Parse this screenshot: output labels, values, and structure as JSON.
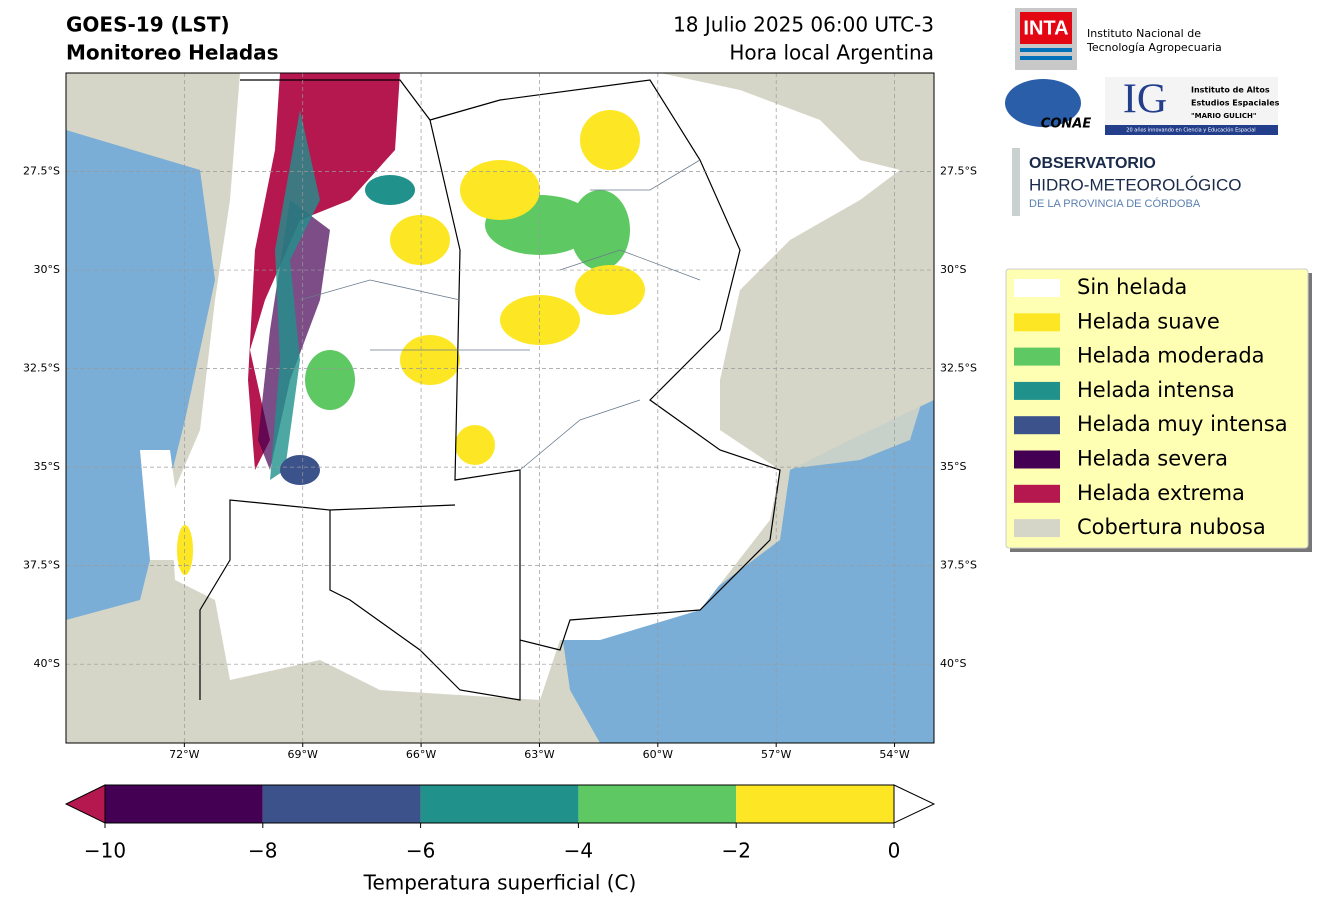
{
  "header": {
    "title": "GOES-19 (LST)",
    "subtitle": "Monitoreo Heladas",
    "date": "18 Julio 2025 06:00 UTC-3",
    "local_time": "Hora local Argentina"
  },
  "logos": {
    "inta": "INTA",
    "inta_name_1": "Instituto Nacional de",
    "inta_name_2": "Tecnología Agropecuaria",
    "conae": "CONAE",
    "ig": "IG",
    "ig_name_1": "Instituto de Altos",
    "ig_name_2": "Estudios Espaciales",
    "ig_name_3": "\"MARIO GULICH\"",
    "ig_motto": "20 años innovando en Ciencia y Educación Espacial",
    "obs_1": "OBSERVATORIO",
    "obs_2": "HIDRO-METEOROLÓGICO",
    "obs_3": "DE LA PROVINCIA DE CÓRDOBA"
  },
  "map": {
    "lonlim": [
      -75,
      -53
    ],
    "latlim": [
      -42,
      -25
    ],
    "grid": true,
    "lon_ticks": [
      {
        "value": -72,
        "label": "72°W"
      },
      {
        "value": -69,
        "label": "69°W"
      },
      {
        "value": -66,
        "label": "66°W"
      },
      {
        "value": -63,
        "label": "63°W"
      },
      {
        "value": -60,
        "label": "60°W"
      },
      {
        "value": -57,
        "label": "57°W"
      },
      {
        "value": -54,
        "label": "54°W"
      }
    ],
    "lat_ticks": [
      {
        "value": -27.5,
        "label": "27.5°S"
      },
      {
        "value": -30,
        "label": "30°S"
      },
      {
        "value": -32.5,
        "label": "32.5°S"
      },
      {
        "value": -35,
        "label": "35°S"
      },
      {
        "value": -37.5,
        "label": "37.5°S"
      },
      {
        "value": -40,
        "label": "40°S"
      }
    ]
  },
  "legend": {
    "items": [
      {
        "label": "Sin helada",
        "color": "#ffffff"
      },
      {
        "label": "Helada suave",
        "color": "#fde725"
      },
      {
        "label": "Helada moderada",
        "color": "#5ec962"
      },
      {
        "label": "Helada intensa",
        "color": "#21918c"
      },
      {
        "label": "Helada muy intensa",
        "color": "#3b528b"
      },
      {
        "label": "Helada severa",
        "color": "#440154"
      },
      {
        "label": "Helada extrema",
        "color": "#b5174f"
      },
      {
        "label": "Cobertura nubosa",
        "color": "#d6d6c8"
      }
    ]
  },
  "colorbar": {
    "label": "Temperatura superficial (C)",
    "lim": [
      -10,
      0
    ],
    "ticks": [
      {
        "value": -10,
        "label": "−10"
      },
      {
        "value": -8,
        "label": "−8"
      },
      {
        "value": -6,
        "label": "−6"
      },
      {
        "value": -4,
        "label": "−4"
      },
      {
        "value": -2,
        "label": "−2"
      },
      {
        "value": 0,
        "label": "0"
      }
    ],
    "colors": [
      "#440154",
      "#3b528b",
      "#21918c",
      "#5ec962",
      "#fde725"
    ],
    "under": "#b5174f",
    "over": "#ffffff"
  }
}
